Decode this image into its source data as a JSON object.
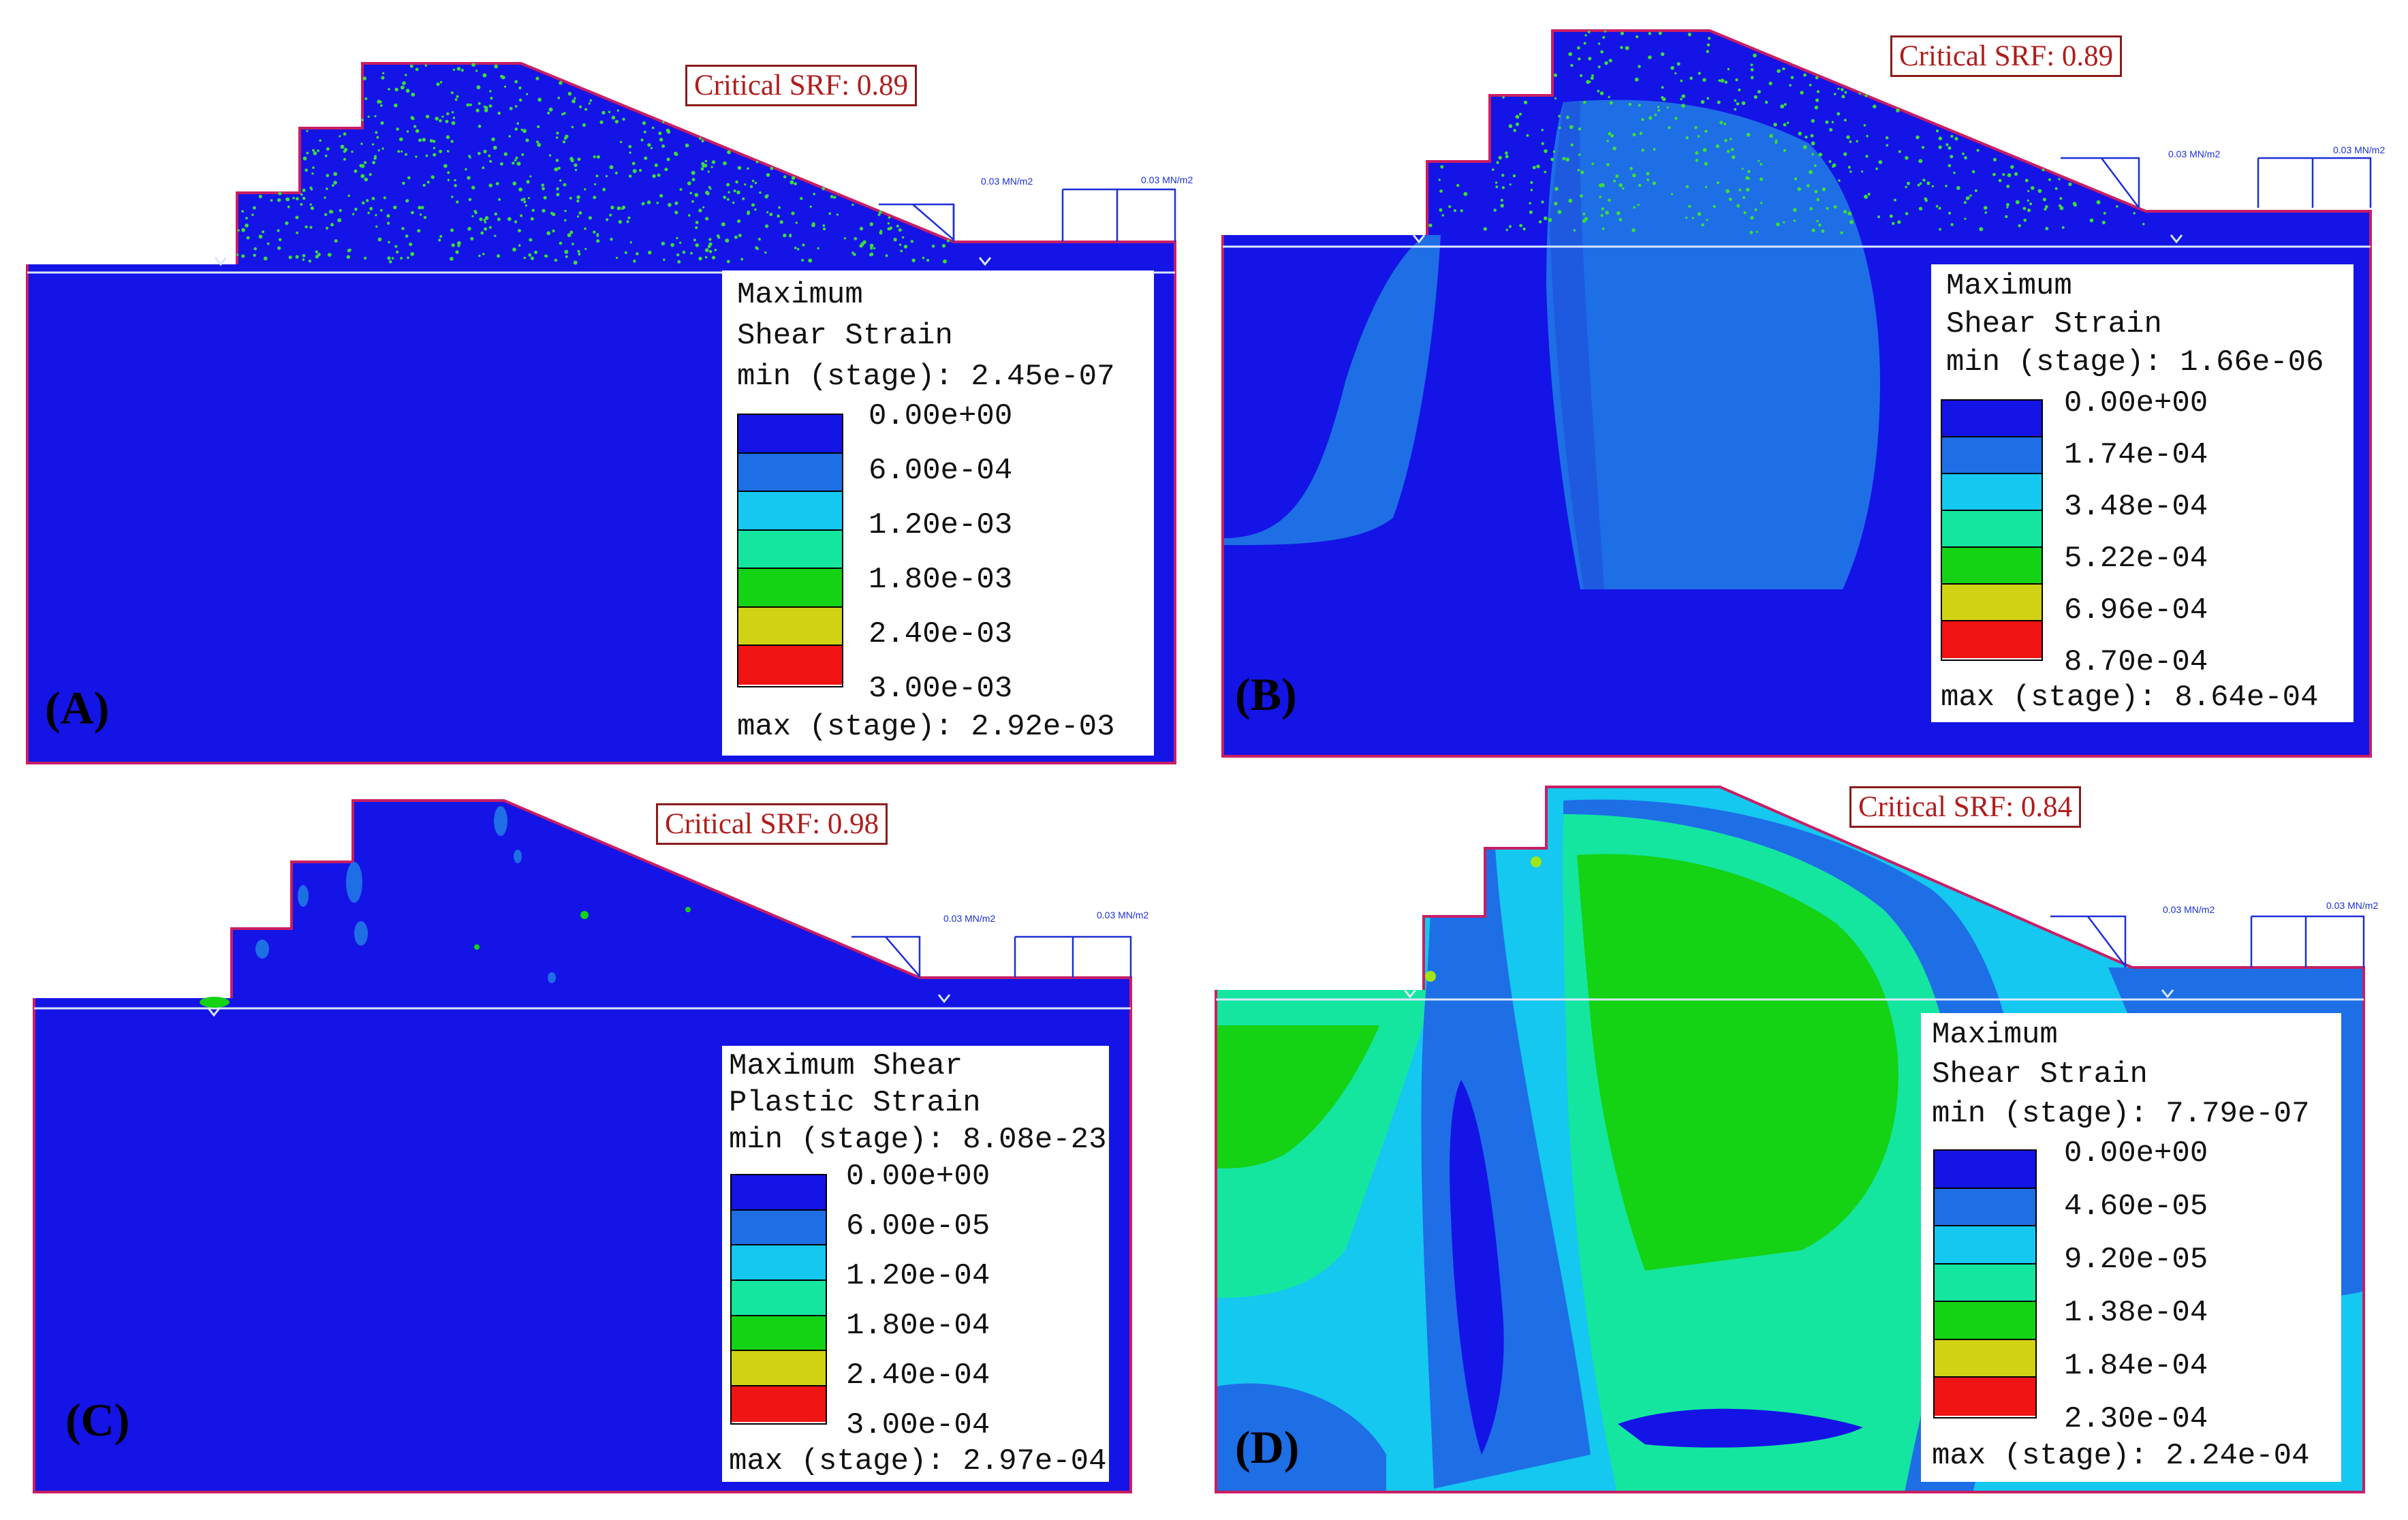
{
  "panels": [
    {
      "id": "A",
      "label": "(A)",
      "srf": "Critical SRF: 0.89",
      "load_left": "0.03 MN/m2",
      "load_right": "0.03 MN/m2",
      "legend": {
        "title1": "Maximum",
        "title2": "Shear Strain",
        "min_text": "min (stage): 2.45e-07",
        "values": [
          "0.00e+00",
          "6.00e-04",
          "1.20e-03",
          "1.80e-03",
          "2.40e-03",
          "3.00e-03"
        ],
        "max_text": "max (stage): 2.92e-03"
      }
    },
    {
      "id": "B",
      "label": "(B)",
      "srf": "Critical SRF: 0.89",
      "load_left": "0.03 MN/m2",
      "load_right": "0.03 MN/m2",
      "legend": {
        "title1": "Maximum",
        "title2": "Shear Strain",
        "min_text": "min (stage): 1.66e-06",
        "values": [
          "0.00e+00",
          "1.74e-04",
          "3.48e-04",
          "5.22e-04",
          "6.96e-04",
          "8.70e-04"
        ],
        "max_text": "max (stage): 8.64e-04"
      }
    },
    {
      "id": "C",
      "label": "(C)",
      "srf": "Critical SRF: 0.98",
      "load_left": "0.03 MN/m2",
      "load_right": "0.03 MN/m2",
      "legend": {
        "title1": "Maximum Shear",
        "title2": "Plastic Strain",
        "min_text": "min (stage): 8.08e-23",
        "values": [
          "0.00e+00",
          "6.00e-05",
          "1.20e-04",
          "1.80e-04",
          "2.40e-04",
          "3.00e-04"
        ],
        "max_text": "max (stage): 2.97e-04"
      }
    },
    {
      "id": "D",
      "label": "(D)",
      "srf": "Critical SRF: 0.84",
      "load_left": "0.03 MN/m2",
      "load_right": "0.03 MN/m2",
      "legend": {
        "title1": "Maximum",
        "title2": "Shear Strain",
        "min_text": "min (stage): 7.79e-07",
        "values": [
          "0.00e+00",
          "4.60e-05",
          "9.20e-05",
          "1.38e-04",
          "1.84e-04",
          "2.30e-04"
        ],
        "max_text": "max (stage): 2.24e-04"
      }
    }
  ],
  "colors": {
    "c0": "#1414e6",
    "c1": "#1e6ee6",
    "c2": "#14c8f0",
    "c3": "#14e6a0",
    "c4": "#14d214",
    "c5": "#a0e614",
    "c6": "#f0a014",
    "c7": "#f01414",
    "boundary": "#c81e64",
    "water": "#d8e8f8"
  }
}
